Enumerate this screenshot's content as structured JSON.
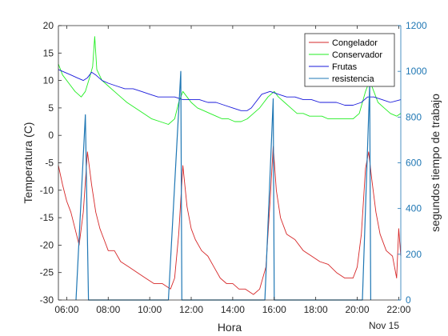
{
  "chart_data": {
    "type": "line",
    "xlabel": "Hora",
    "ylabel_left": "Temperatura (C)",
    "ylabel_right": "segundos tiempo de trabajo",
    "x_tick_labels": [
      "06:00",
      "08:00",
      "10:00",
      "12:00",
      "14:00",
      "16:00",
      "18:00",
      "20:00",
      "22:00"
    ],
    "x_tick_hours": [
      6,
      8,
      10,
      12,
      14,
      16,
      18,
      20,
      22
    ],
    "date_label": "Nov 15",
    "xlim_hours": [
      5.6,
      22.1
    ],
    "ylim_left": [
      -30,
      20
    ],
    "y_ticks_left": [
      -30,
      -25,
      -20,
      -15,
      -10,
      -5,
      0,
      5,
      10,
      15,
      20
    ],
    "ylim_right": [
      0,
      1200
    ],
    "y_ticks_right": [
      0,
      200,
      400,
      600,
      800,
      1000,
      1200
    ],
    "right_axis_color": "#1f77b4",
    "legend_position": "top-right",
    "series": [
      {
        "name": "Congelador",
        "axis": "left",
        "color": "#d62728",
        "points": [
          [
            5.6,
            -5.5
          ],
          [
            5.8,
            -9
          ],
          [
            6.0,
            -12
          ],
          [
            6.2,
            -14
          ],
          [
            6.4,
            -17
          ],
          [
            6.6,
            -20
          ],
          [
            6.8,
            -14
          ],
          [
            7.0,
            -3
          ],
          [
            7.2,
            -9
          ],
          [
            7.4,
            -14
          ],
          [
            7.6,
            -17
          ],
          [
            7.8,
            -19
          ],
          [
            8.0,
            -21
          ],
          [
            8.3,
            -21
          ],
          [
            8.6,
            -23
          ],
          [
            9.0,
            -24
          ],
          [
            9.4,
            -25
          ],
          [
            9.8,
            -26
          ],
          [
            10.2,
            -27
          ],
          [
            10.6,
            -27
          ],
          [
            11.0,
            -28
          ],
          [
            11.2,
            -26
          ],
          [
            11.4,
            -18
          ],
          [
            11.6,
            -5.5
          ],
          [
            11.8,
            -13
          ],
          [
            12.0,
            -17
          ],
          [
            12.2,
            -19
          ],
          [
            12.5,
            -21
          ],
          [
            12.8,
            -22
          ],
          [
            13.1,
            -24
          ],
          [
            13.4,
            -26
          ],
          [
            13.7,
            -27
          ],
          [
            14.0,
            -27
          ],
          [
            14.3,
            -28
          ],
          [
            14.6,
            -28
          ],
          [
            15.0,
            -29
          ],
          [
            15.3,
            -28
          ],
          [
            15.6,
            -24
          ],
          [
            15.8,
            -12
          ],
          [
            15.95,
            -2
          ],
          [
            16.1,
            -10
          ],
          [
            16.3,
            -15
          ],
          [
            16.6,
            -18
          ],
          [
            17.0,
            -19
          ],
          [
            17.4,
            -21
          ],
          [
            17.8,
            -22
          ],
          [
            18.2,
            -23
          ],
          [
            18.6,
            -23.5
          ],
          [
            19.0,
            -25
          ],
          [
            19.4,
            -26
          ],
          [
            19.8,
            -26
          ],
          [
            20.0,
            -24
          ],
          [
            20.2,
            -18
          ],
          [
            20.4,
            -6
          ],
          [
            20.55,
            -3
          ],
          [
            20.7,
            -8
          ],
          [
            20.9,
            -14
          ],
          [
            21.1,
            -18
          ],
          [
            21.4,
            -21
          ],
          [
            21.7,
            -22
          ],
          [
            21.9,
            -26
          ],
          [
            22.0,
            -17
          ],
          [
            22.1,
            -22
          ]
        ]
      },
      {
        "name": "Conservador",
        "axis": "left",
        "color": "#22ee22",
        "points": [
          [
            5.6,
            13
          ],
          [
            5.8,
            11
          ],
          [
            6.1,
            9.5
          ],
          [
            6.4,
            8
          ],
          [
            6.7,
            7
          ],
          [
            6.9,
            8
          ],
          [
            7.1,
            10.5
          ],
          [
            7.25,
            12.5
          ],
          [
            7.35,
            18
          ],
          [
            7.45,
            12
          ],
          [
            7.7,
            10
          ],
          [
            8.0,
            9
          ],
          [
            8.3,
            8
          ],
          [
            8.6,
            7
          ],
          [
            8.9,
            6
          ],
          [
            9.3,
            5
          ],
          [
            9.7,
            4
          ],
          [
            10.1,
            3
          ],
          [
            10.5,
            2.5
          ],
          [
            10.9,
            2
          ],
          [
            11.2,
            3
          ],
          [
            11.4,
            6
          ],
          [
            11.6,
            8
          ],
          [
            11.8,
            7
          ],
          [
            12.0,
            6
          ],
          [
            12.3,
            5
          ],
          [
            12.6,
            4.5
          ],
          [
            12.9,
            4
          ],
          [
            13.2,
            3.5
          ],
          [
            13.5,
            3
          ],
          [
            13.8,
            3
          ],
          [
            14.1,
            2.5
          ],
          [
            14.4,
            2.5
          ],
          [
            14.7,
            3
          ],
          [
            15.0,
            4
          ],
          [
            15.3,
            5
          ],
          [
            15.5,
            6
          ],
          [
            15.7,
            7
          ],
          [
            16.0,
            8
          ],
          [
            16.2,
            7
          ],
          [
            16.5,
            6
          ],
          [
            16.8,
            5
          ],
          [
            17.1,
            4
          ],
          [
            17.4,
            4
          ],
          [
            17.7,
            3.5
          ],
          [
            18.0,
            3.5
          ],
          [
            18.3,
            3.5
          ],
          [
            18.6,
            3
          ],
          [
            18.9,
            3
          ],
          [
            19.2,
            3
          ],
          [
            19.5,
            3
          ],
          [
            19.8,
            3
          ],
          [
            20.1,
            4
          ],
          [
            20.4,
            8
          ],
          [
            20.6,
            10
          ],
          [
            20.8,
            8
          ],
          [
            21.0,
            6
          ],
          [
            21.3,
            5
          ],
          [
            21.6,
            4
          ],
          [
            21.9,
            3.5
          ],
          [
            22.1,
            4
          ]
        ]
      },
      {
        "name": "Frutas",
        "axis": "left",
        "color": "#1a1adb",
        "points": [
          [
            5.6,
            12
          ],
          [
            5.9,
            11.5
          ],
          [
            6.2,
            11
          ],
          [
            6.5,
            10.5
          ],
          [
            6.8,
            10
          ],
          [
            7.0,
            10.5
          ],
          [
            7.2,
            11.5
          ],
          [
            7.4,
            11
          ],
          [
            7.7,
            10
          ],
          [
            8.0,
            9.5
          ],
          [
            8.4,
            9
          ],
          [
            8.8,
            8.5
          ],
          [
            9.2,
            8.5
          ],
          [
            9.6,
            8
          ],
          [
            10.0,
            7.5
          ],
          [
            10.4,
            7
          ],
          [
            10.8,
            7
          ],
          [
            11.2,
            7
          ],
          [
            11.6,
            6.5
          ],
          [
            12.0,
            6.5
          ],
          [
            12.4,
            6.5
          ],
          [
            12.8,
            6
          ],
          [
            13.2,
            6
          ],
          [
            13.6,
            5.5
          ],
          [
            14.0,
            5
          ],
          [
            14.4,
            4.5
          ],
          [
            14.7,
            4.5
          ],
          [
            14.9,
            5
          ],
          [
            15.1,
            6
          ],
          [
            15.4,
            7.5
          ],
          [
            15.8,
            8
          ],
          [
            16.2,
            7.5
          ],
          [
            16.6,
            7
          ],
          [
            17.0,
            7
          ],
          [
            17.4,
            6.5
          ],
          [
            17.8,
            6.5
          ],
          [
            18.2,
            6
          ],
          [
            18.6,
            6
          ],
          [
            19.0,
            6
          ],
          [
            19.4,
            5.5
          ],
          [
            19.8,
            5.5
          ],
          [
            20.2,
            6
          ],
          [
            20.5,
            7
          ],
          [
            20.8,
            7
          ],
          [
            21.2,
            6.5
          ],
          [
            21.6,
            6
          ],
          [
            22.1,
            6.5
          ]
        ]
      },
      {
        "name": "resistencia",
        "axis": "right",
        "color": "#1f77b4",
        "points": [
          [
            6.45,
            0
          ],
          [
            6.9,
            810
          ],
          [
            7.05,
            0
          ],
          [
            10.9,
            0
          ],
          [
            11.5,
            1000
          ],
          [
            11.55,
            0
          ],
          [
            15.55,
            0
          ],
          [
            15.95,
            880
          ],
          [
            16.0,
            0
          ],
          [
            20.25,
            0
          ],
          [
            20.6,
            940
          ],
          [
            20.65,
            0
          ]
        ]
      }
    ]
  }
}
